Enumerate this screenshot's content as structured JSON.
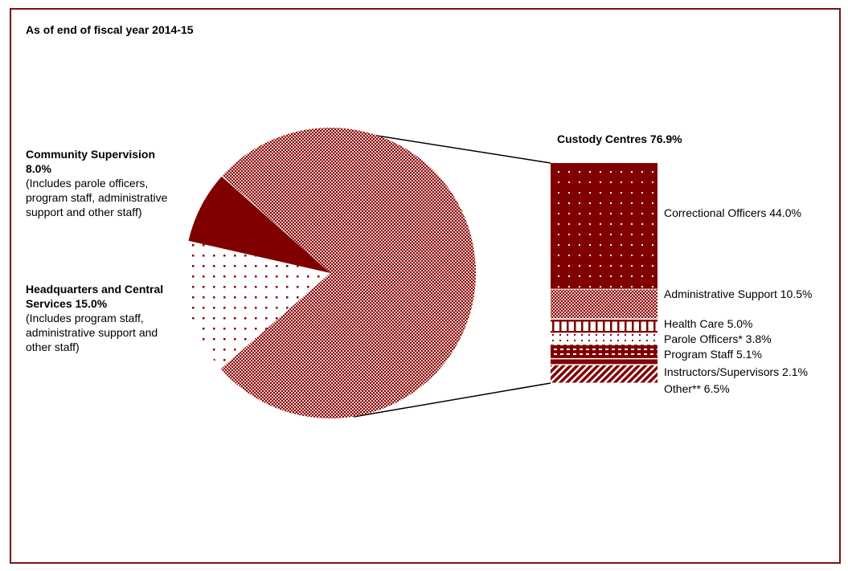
{
  "chart_data": {
    "type": "pie",
    "title": "As of end of fiscal year 2014-15",
    "slices": [
      {
        "label": "Custody Centres",
        "value": 76.9,
        "value_label": "76.9%",
        "pattern": "checker"
      },
      {
        "label": "Headquarters and Central Services",
        "value": 15.0,
        "value_label": "15.0%",
        "note": "(Includes program staff, administrative support and other staff)",
        "pattern": "dots"
      },
      {
        "label": "Community Supervision",
        "value": 8.0,
        "value_label": "8.0%",
        "note": "(Includes parole officers, program staff, administrative support and other staff)",
        "pattern": "solid"
      }
    ],
    "breakdown": {
      "title": "Custody Centres  76.9%",
      "type": "stacked-bar",
      "segments": [
        {
          "label": "Correctional Officers  44.0%",
          "value": 44.0,
          "pattern": "dots-on-red"
        },
        {
          "label": "Administrative Support  10.5%",
          "value": 10.5,
          "pattern": "checker"
        },
        {
          "label": "Health Care  5.0%",
          "value": 5.0,
          "pattern": "grid"
        },
        {
          "label": "Parole Officers*  3.8%",
          "value": 3.8,
          "pattern": "sparse-dashes"
        },
        {
          "label": "Program Staff  5.1%",
          "value": 5.1,
          "pattern": "dashes-on-red"
        },
        {
          "label": "Instructors/Supervisors  2.1%",
          "value": 2.1,
          "pattern": "solid"
        },
        {
          "label": "Other**  6.5%",
          "value": 6.5,
          "pattern": "diagonal"
        }
      ]
    },
    "colors": {
      "primary": "#800000",
      "frame": "#7b1416"
    }
  }
}
